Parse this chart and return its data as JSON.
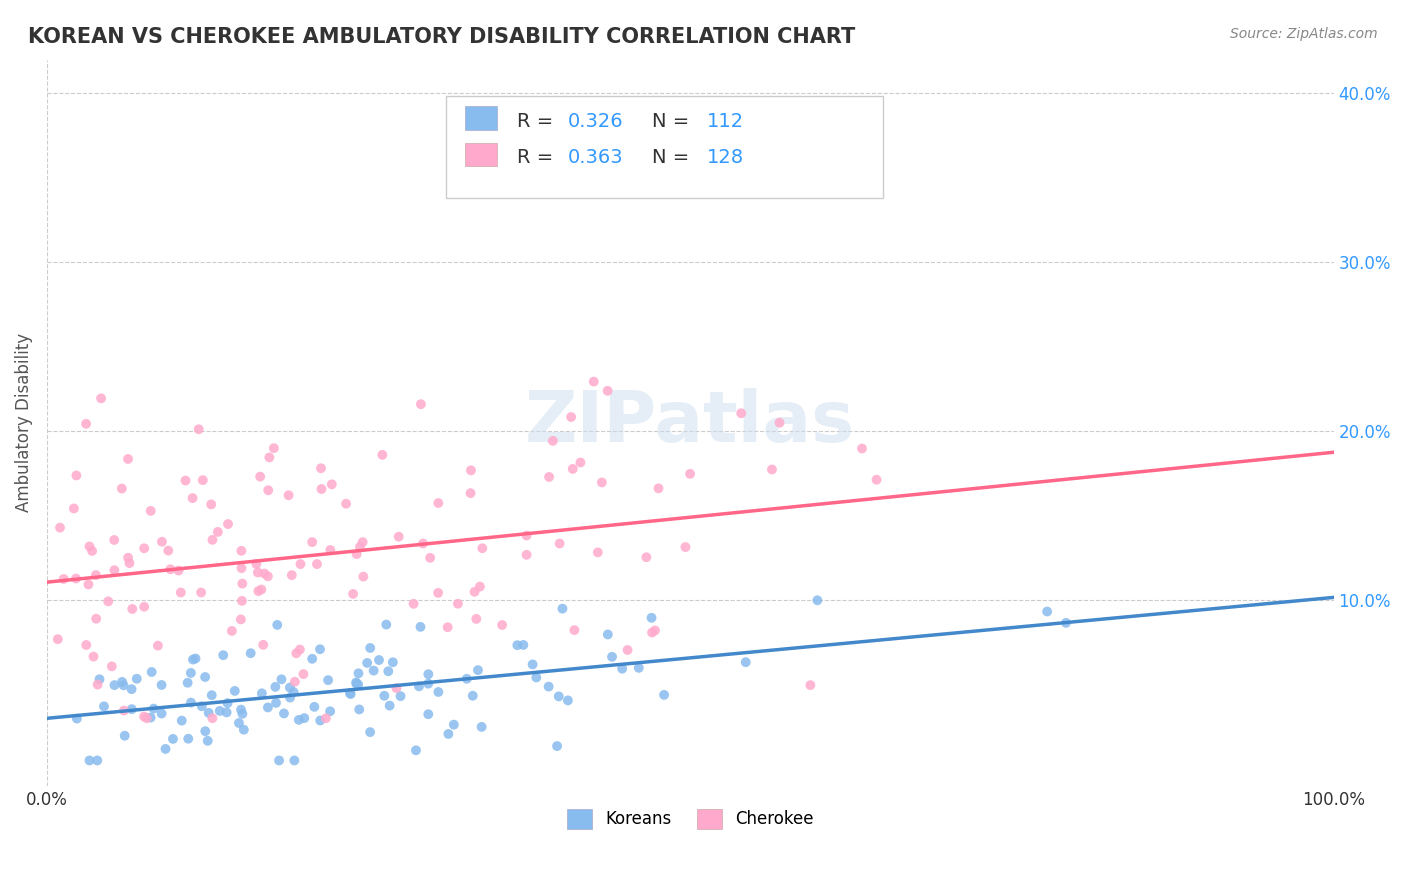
{
  "title": "KOREAN VS CHEROKEE AMBULATORY DISABILITY CORRELATION CHART",
  "source_text": "Source: ZipAtlas.com",
  "ylabel": "Ambulatory Disability",
  "xlabel": "",
  "xlim": [
    0.0,
    1.0
  ],
  "ylim": [
    -0.01,
    0.42
  ],
  "x_tick_labels": [
    "0.0%",
    "100.0%"
  ],
  "y_tick_labels": [
    "10.0%",
    "20.0%",
    "30.0%",
    "40.0%"
  ],
  "y_tick_values": [
    0.1,
    0.2,
    0.3,
    0.4
  ],
  "korean_color": "#88bbee",
  "cherokee_color": "#ffaacc",
  "korean_line_color": "#4488cc",
  "cherokee_line_color": "#ff6688",
  "korean_R": 0.326,
  "korean_N": 112,
  "cherokee_R": 0.363,
  "cherokee_N": 128,
  "legend_r_color": "#3399ff",
  "legend_n_color": "#3399ff",
  "background_color": "#ffffff",
  "grid_color": "#cccccc",
  "watermark_text": "ZIPatlas",
  "watermark_color": "#ccddee",
  "title_color": "#333333",
  "tick_label_color_right": "#3399ff",
  "legend_label_koreans": "Koreans",
  "legend_label_cherokee": "Cherokee",
  "korean_seed": 42,
  "cherokee_seed": 123
}
